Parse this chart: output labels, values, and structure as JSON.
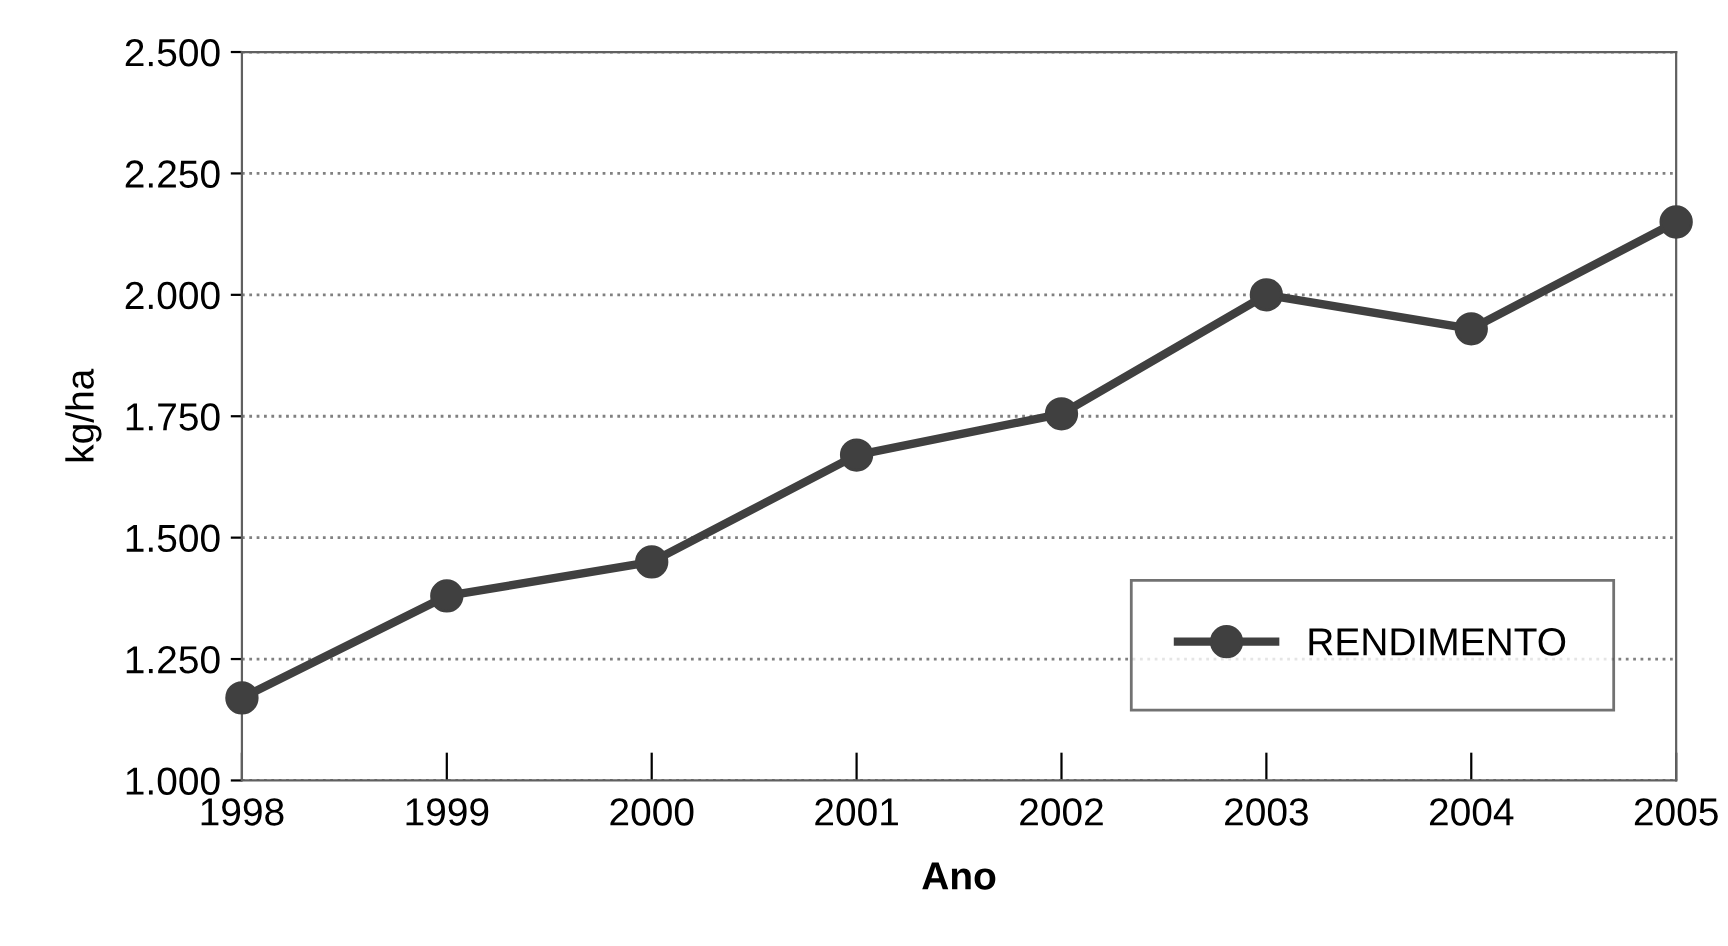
{
  "chart_data": {
    "type": "line",
    "xlabel": "Ano",
    "ylabel": "kg/ha",
    "categories": [
      "1998",
      "1999",
      "2000",
      "2001",
      "2002",
      "2003",
      "2004",
      "2005"
    ],
    "series": [
      {
        "name": "RENDIMENTO",
        "color": "#404040",
        "values": [
          1170,
          1380,
          1450,
          1670,
          1755,
          2000,
          1930,
          2150
        ]
      }
    ],
    "ylim": [
      1000,
      2500
    ],
    "yticks": [
      {
        "value": 1000,
        "label": "1.000"
      },
      {
        "value": 1250,
        "label": "1.250"
      },
      {
        "value": 1500,
        "label": "1.500"
      },
      {
        "value": 1750,
        "label": "1.750"
      },
      {
        "value": 2000,
        "label": "2.000"
      },
      {
        "value": 2250,
        "label": "2.250"
      },
      {
        "value": 2500,
        "label": "2.500"
      }
    ],
    "grid": "y",
    "legend": "bottom right",
    "marker": "circle",
    "line_style": "solid"
  }
}
